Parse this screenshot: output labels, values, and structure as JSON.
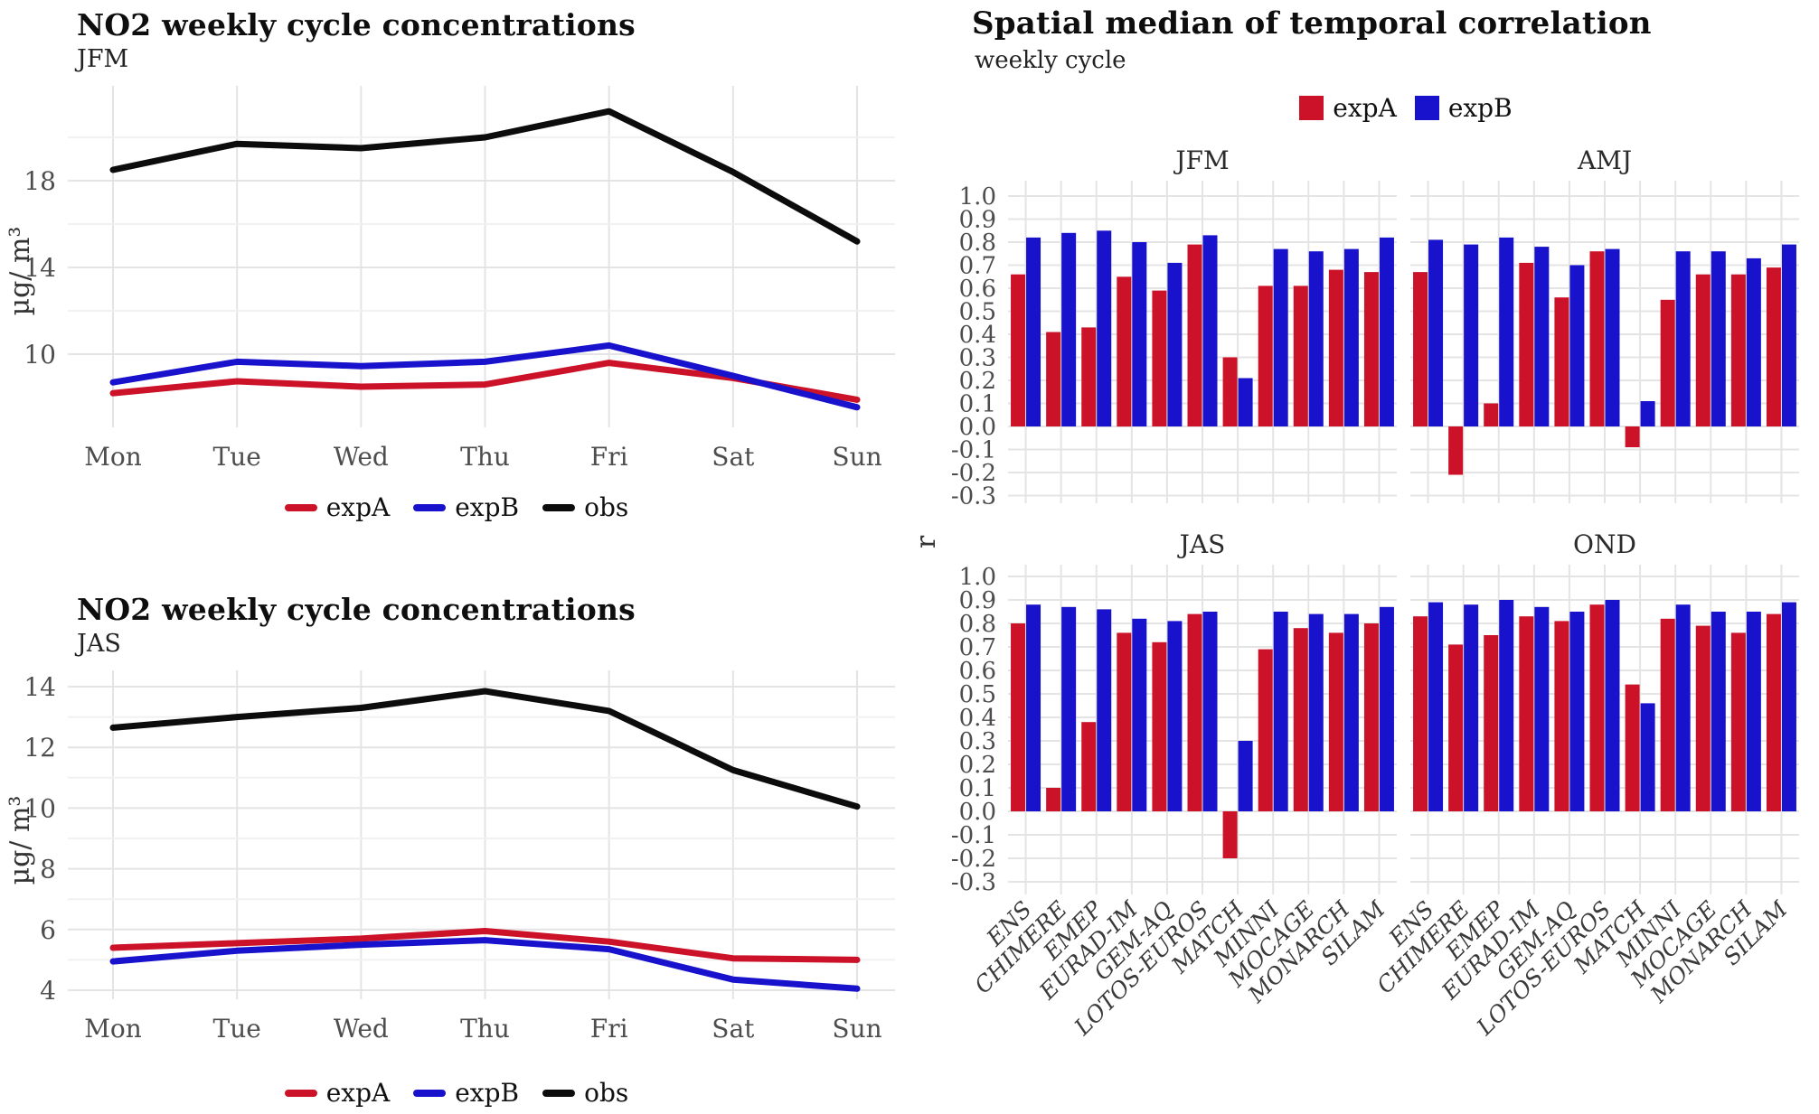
{
  "accent_colors": {
    "expA": "#cc1228",
    "expB": "#1912cc",
    "obs": "#0c0c0c"
  },
  "left_charts": [
    {
      "title": "NO2 weekly cycle concentrations",
      "subtitle": "JFM",
      "ylabel": "µg/ m³",
      "legend": [
        {
          "label": "expA",
          "color": "#cc1228"
        },
        {
          "label": "expB",
          "color": "#1912cc"
        },
        {
          "label": "obs",
          "color": "#0c0c0c"
        }
      ]
    },
    {
      "title": "NO2 weekly cycle concentrations",
      "subtitle": "JAS",
      "ylabel": "µg/ m³",
      "legend": [
        {
          "label": "expA",
          "color": "#cc1228"
        },
        {
          "label": "expB",
          "color": "#1912cc"
        },
        {
          "label": "obs",
          "color": "#0c0c0c"
        }
      ]
    }
  ],
  "right_chart": {
    "title": "Spatial median of temporal correlation",
    "subtitle": "weekly cycle",
    "ylabel": "r",
    "legend": [
      {
        "label": "expA",
        "color": "#cc1228"
      },
      {
        "label": "expB",
        "color": "#1912cc"
      }
    ]
  },
  "chart_data": [
    {
      "type": "line",
      "panel": "JFM",
      "title": "NO2 weekly cycle concentrations",
      "xlabel": "",
      "ylabel": "µg/ m³",
      "x": [
        "Mon",
        "Tue",
        "Wed",
        "Thu",
        "Fri",
        "Sat",
        "Sun"
      ],
      "yticks": [
        10,
        14,
        18
      ],
      "yminor": [
        12,
        16,
        20
      ],
      "ylim": [
        6.6,
        22.4
      ],
      "grid": true,
      "legend_position": "bottom",
      "series": [
        {
          "name": "expA",
          "color": "#cc1228",
          "values": [
            8.2,
            8.75,
            8.5,
            8.6,
            9.6,
            8.9,
            7.9
          ]
        },
        {
          "name": "expB",
          "color": "#1912cc",
          "values": [
            8.7,
            9.65,
            9.45,
            9.65,
            10.4,
            9.0,
            7.55
          ]
        },
        {
          "name": "obs",
          "color": "#0c0c0c",
          "values": [
            18.5,
            19.7,
            19.5,
            20.0,
            21.2,
            18.4,
            15.2
          ]
        }
      ]
    },
    {
      "type": "line",
      "panel": "JAS",
      "title": "NO2 weekly cycle concentrations",
      "xlabel": "",
      "ylabel": "µg/ m³",
      "x": [
        "Mon",
        "Tue",
        "Wed",
        "Thu",
        "Fri",
        "Sat",
        "Sun"
      ],
      "yticks": [
        4,
        6,
        8,
        10,
        12,
        14
      ],
      "yminor": [
        5,
        7,
        9,
        11,
        13
      ],
      "ylim": [
        3.7,
        14.55
      ],
      "grid": true,
      "legend_position": "bottom",
      "series": [
        {
          "name": "expA",
          "color": "#cc1228",
          "values": [
            5.4,
            5.55,
            5.7,
            5.95,
            5.6,
            5.05,
            5.0
          ]
        },
        {
          "name": "expB",
          "color": "#1912cc",
          "values": [
            4.95,
            5.3,
            5.5,
            5.65,
            5.35,
            4.35,
            4.05
          ]
        },
        {
          "name": "obs",
          "color": "#0c0c0c",
          "values": [
            12.65,
            13.0,
            13.3,
            13.85,
            13.2,
            11.25,
            10.05
          ]
        }
      ]
    },
    {
      "type": "bar",
      "title": "Spatial median of temporal correlation",
      "subtitle": "weekly cycle",
      "ylabel": "r",
      "categories": [
        "ENS",
        "CHIMERE",
        "EMEP",
        "EURAD-IM",
        "GEM-AQ",
        "LOTOS-EUROS",
        "MATCH",
        "MINNI",
        "MOCAGE",
        "MONARCH",
        "SILAM"
      ],
      "yticks": [
        1.0,
        0.9,
        0.8,
        0.7,
        0.6,
        0.5,
        0.4,
        0.3,
        0.2,
        0.1,
        0.0,
        -0.1,
        -0.2,
        -0.3
      ],
      "ylim": [
        -0.33,
        1.04
      ],
      "grid": true,
      "legend_position": "top",
      "facets": [
        {
          "name": "JFM",
          "expA": [
            0.66,
            0.41,
            0.43,
            0.65,
            0.59,
            0.79,
            0.3,
            0.61,
            0.61,
            0.68,
            0.67
          ],
          "expB": [
            0.82,
            0.84,
            0.85,
            0.8,
            0.71,
            0.83,
            0.21,
            0.77,
            0.76,
            0.77,
            0.82
          ]
        },
        {
          "name": "AMJ",
          "expA": [
            0.67,
            -0.21,
            0.1,
            0.71,
            0.56,
            0.76,
            -0.09,
            0.55,
            0.66,
            0.66,
            0.69
          ],
          "expB": [
            0.81,
            0.79,
            0.82,
            0.78,
            0.7,
            0.77,
            0.11,
            0.76,
            0.76,
            0.73,
            0.79
          ]
        },
        {
          "name": "JAS",
          "expA": [
            0.8,
            0.1,
            0.38,
            0.76,
            0.72,
            0.84,
            -0.2,
            0.69,
            0.78,
            0.76,
            0.8
          ],
          "expB": [
            0.88,
            0.87,
            0.86,
            0.82,
            0.81,
            0.85,
            0.3,
            0.85,
            0.84,
            0.84,
            0.87
          ]
        },
        {
          "name": "OND",
          "expA": [
            0.83,
            0.71,
            0.75,
            0.83,
            0.81,
            0.88,
            0.54,
            0.82,
            0.79,
            0.76,
            0.84
          ],
          "expB": [
            0.89,
            0.88,
            0.9,
            0.87,
            0.85,
            0.9,
            0.46,
            0.88,
            0.85,
            0.85,
            0.89
          ]
        }
      ]
    }
  ]
}
